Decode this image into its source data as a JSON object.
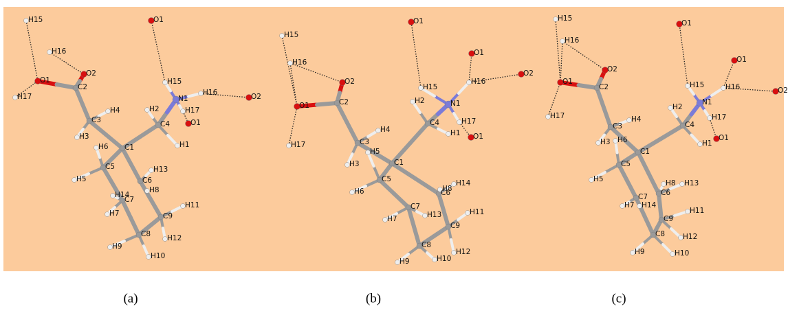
{
  "panels": [
    {
      "caption": "(a)",
      "atoms": [
        "H15",
        "O1",
        "H16",
        "O2",
        "C2",
        "H17",
        "C3",
        "H4",
        "H3",
        "C1",
        "H6",
        "C5",
        "H5",
        "C6",
        "H13",
        "H8",
        "C7",
        "H14",
        "H7",
        "C9",
        "H11",
        "C8",
        "H9",
        "H12",
        "H10",
        "C4",
        "H2",
        "N1",
        "H15",
        "O1",
        "H16",
        "O2",
        "H17",
        "O1",
        "H1"
      ]
    },
    {
      "caption": "(b)",
      "atoms": [
        "H15",
        "O1",
        "H16",
        "O2",
        "C2",
        "H17",
        "C3",
        "H4",
        "H3",
        "C1",
        "H5",
        "C5",
        "H6",
        "C6",
        "H14",
        "H8",
        "C7",
        "H13",
        "H7",
        "C9",
        "H11",
        "C8",
        "H9",
        "H12",
        "H10",
        "C4",
        "H2",
        "N1",
        "H15",
        "O1",
        "H16",
        "O2",
        "H17",
        "O1",
        "H1",
        "O1"
      ]
    },
    {
      "caption": "(c)",
      "atoms": [
        "H15",
        "O1",
        "H16",
        "O2",
        "C2",
        "H17",
        "C3",
        "H4",
        "H3",
        "C1",
        "H6",
        "C5",
        "H5",
        "C6",
        "H13",
        "H8",
        "C7",
        "H14",
        "H7",
        "C9",
        "H11",
        "C8",
        "H9",
        "H12",
        "H10",
        "C4",
        "H2",
        "N1",
        "H15",
        "O1",
        "H16",
        "O2",
        "H17",
        "O1",
        "H1",
        "O1"
      ]
    }
  ]
}
